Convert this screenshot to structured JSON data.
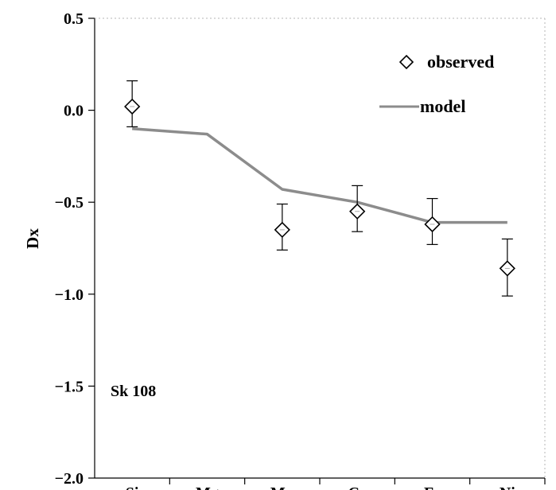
{
  "chart_data": {
    "type": "scatter",
    "title": "",
    "xlabel": "",
    "ylabel": "Dx",
    "categories": [
      "Si",
      "Mg",
      "Mn",
      "Cr",
      "Fe",
      "Ni"
    ],
    "ylim": [
      -2.0,
      0.5
    ],
    "yticks": [
      0.5,
      0.0,
      -0.5,
      -1.0,
      -1.5,
      -2.0
    ],
    "ytick_labels": [
      "0.5",
      "0.0",
      "−0.5",
      "−1.0",
      "−1.5",
      "−2.0"
    ],
    "grid": false,
    "legend_position": "top-right",
    "series": [
      {
        "name": "observed",
        "kind": "scatter",
        "marker": "diamond-open",
        "points": [
          {
            "category": "Si",
            "y": 0.02,
            "err_low": -0.09,
            "err_high": 0.16
          },
          {
            "category": "Mn",
            "y": -0.65,
            "err_low": -0.76,
            "err_high": -0.51
          },
          {
            "category": "Cr",
            "y": -0.55,
            "err_low": -0.66,
            "err_high": -0.41
          },
          {
            "category": "Fe",
            "y": -0.62,
            "err_low": -0.73,
            "err_high": -0.48
          },
          {
            "category": "Ni",
            "y": -0.86,
            "err_low": -1.01,
            "err_high": -0.7
          }
        ]
      },
      {
        "name": "model",
        "kind": "line",
        "color": "#8c8c8c",
        "points": [
          {
            "category": "Si",
            "y": -0.1
          },
          {
            "category": "Mg",
            "y": -0.13
          },
          {
            "category": "Mn",
            "y": -0.43
          },
          {
            "category": "Cr",
            "y": -0.5
          },
          {
            "category": "Fe",
            "y": -0.61
          },
          {
            "category": "Ni",
            "y": -0.61
          }
        ]
      }
    ],
    "annotations": [
      "Sk 108"
    ]
  }
}
